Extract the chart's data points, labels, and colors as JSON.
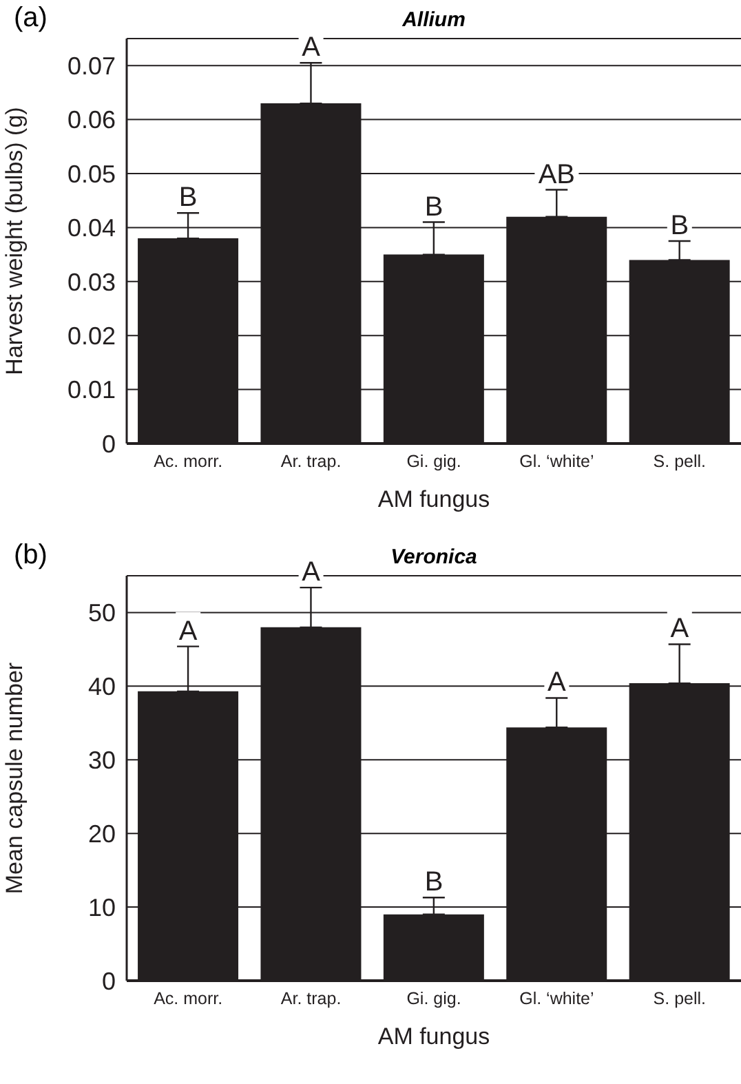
{
  "chart_data": [
    {
      "type": "bar",
      "title": "Allium",
      "xlabel": "AM fungus",
      "ylabel": "Harvest weight (bulbs) (g)",
      "categories": [
        "Ac. morr.",
        "Ar. trap.",
        "Gi. gig.",
        "Gl. ‘white’",
        "S. pell."
      ],
      "values": [
        0.038,
        0.063,
        0.035,
        0.042,
        0.034
      ],
      "errors": [
        [
          0.038,
          0.0427
        ],
        [
          0.063,
          0.0705
        ],
        [
          0.035,
          0.041
        ],
        [
          0.042,
          0.047
        ],
        [
          0.034,
          0.0375
        ]
      ],
      "color": "#231f20",
      "ylim": [
        0,
        0.075
      ],
      "yticks": [
        0,
        0.01,
        0.02,
        0.03,
        0.04,
        0.05,
        0.06,
        0.07
      ],
      "grid": "y",
      "annotations": [
        "(a)",
        {
          "text": "B",
          "x": "Ac. morr.",
          "y": 0.0427
        },
        {
          "text": "A",
          "x": "Ar. trap.",
          "y": 0.0705
        },
        {
          "text": "B",
          "x": "Gi. gig.",
          "y": 0.041
        },
        {
          "text": "AB",
          "x": "Gl. ‘white’",
          "y": 0.047
        },
        {
          "text": "B",
          "x": "S. pell.",
          "y": 0.0375
        }
      ]
    },
    {
      "type": "bar",
      "title": "Veronica",
      "xlabel": "AM fungus",
      "ylabel": "Mean capsule number",
      "categories": [
        "Ac. morr.",
        "Ar. trap.",
        "Gi. gig.",
        "Gl. ‘white’",
        "S. pell."
      ],
      "values": [
        39.3,
        48,
        9,
        34.4,
        40.4
      ],
      "errors": [
        [
          39.3,
          45.4
        ],
        [
          48,
          53.4
        ],
        [
          9,
          11.3
        ],
        [
          34.4,
          38.4
        ],
        [
          40.4,
          45.7
        ]
      ],
      "color": "#231f20",
      "ylim": [
        0,
        55
      ],
      "yticks": [
        0,
        10,
        20,
        30,
        40,
        50
      ],
      "grid": "y",
      "annotations": [
        "(b)",
        {
          "text": "A",
          "x": "Ac. morr.",
          "y": 45.4
        },
        {
          "text": "A",
          "x": "Ar. trap.",
          "y": 53.4
        },
        {
          "text": "B",
          "x": "Gi. gig.",
          "y": 11.3
        },
        {
          "text": "A",
          "x": "Gl. ‘white’",
          "y": 38.4
        },
        {
          "text": "A",
          "x": "S. pell.",
          "y": 45.7
        }
      ]
    }
  ]
}
